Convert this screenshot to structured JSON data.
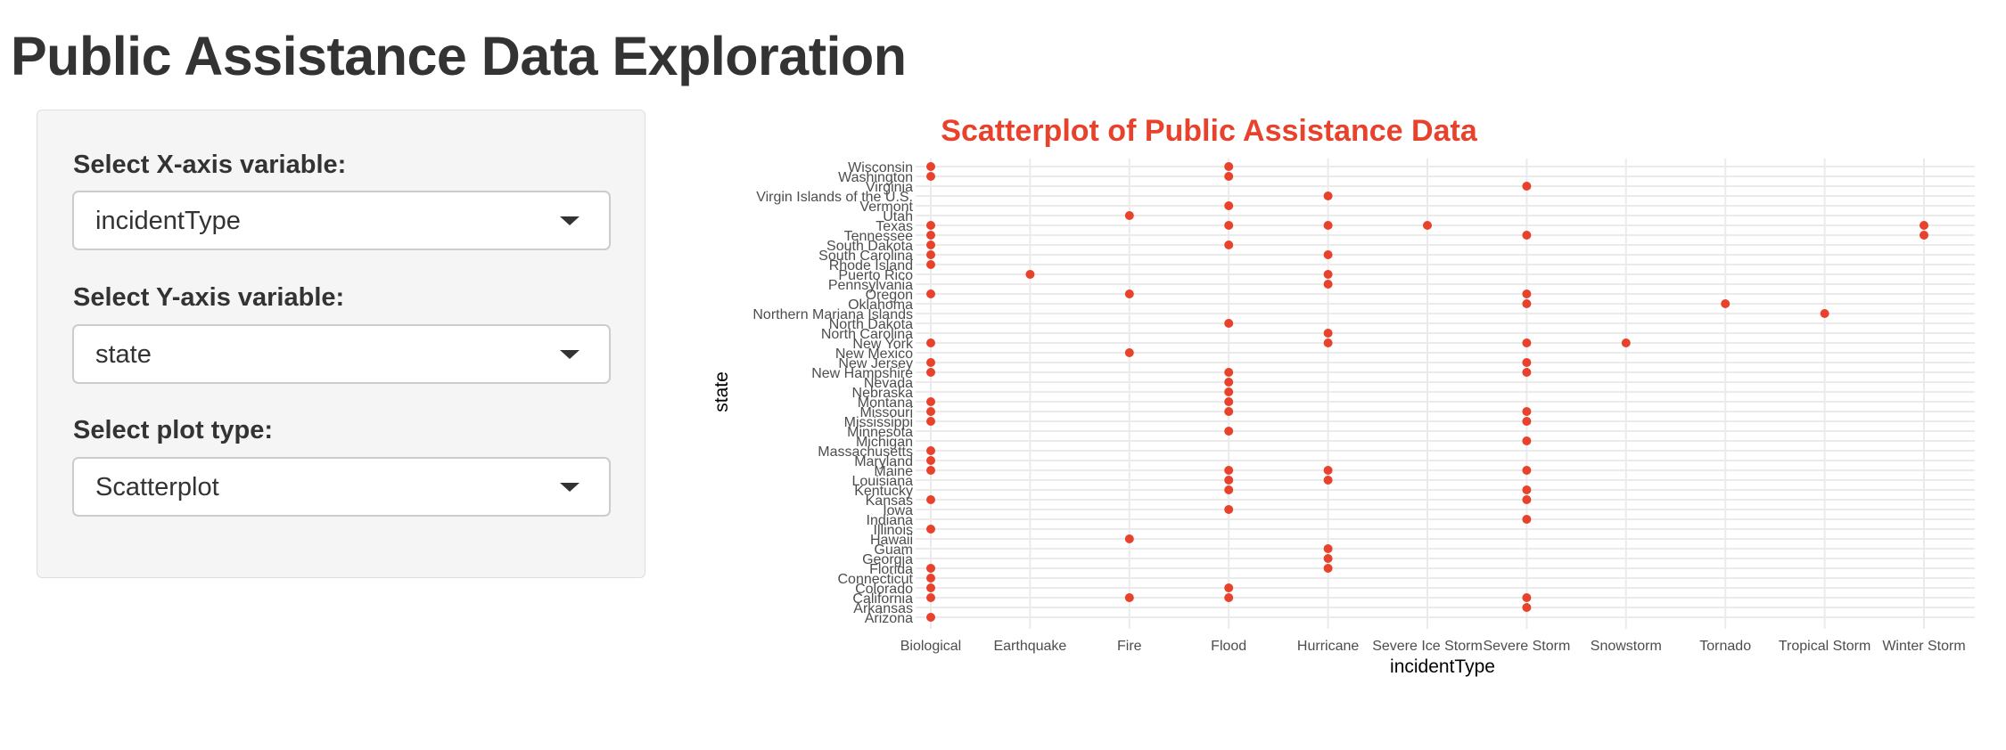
{
  "page": {
    "title": "Public Assistance Data Exploration"
  },
  "controls": [
    {
      "label": "Select X-axis variable:",
      "value": "incidentType"
    },
    {
      "label": "Select Y-axis variable:",
      "value": "state"
    },
    {
      "label": "Select plot type:",
      "value": "Scatterplot"
    }
  ],
  "chart_data": {
    "type": "scatter",
    "title": "Scatterplot of Public Assistance Data",
    "xlabel": "incidentType",
    "ylabel": "state",
    "grid": true,
    "color": "#e8412c",
    "title_color": "#e8412c",
    "x_categories": [
      "Biological",
      "Earthquake",
      "Fire",
      "Flood",
      "Hurricane",
      "Severe Ice Storm",
      "Severe Storm",
      "Snowstorm",
      "Tornado",
      "Tropical Storm",
      "Winter Storm"
    ],
    "y_categories": [
      "Arizona",
      "Arkansas",
      "California",
      "Colorado",
      "Connecticut",
      "Florida",
      "Georgia",
      "Guam",
      "Hawaii",
      "Illinois",
      "Indiana",
      "Iowa",
      "Kansas",
      "Kentucky",
      "Louisiana",
      "Maine",
      "Maryland",
      "Massachusetts",
      "Michigan",
      "Minnesota",
      "Mississippi",
      "Missouri",
      "Montana",
      "Nebraska",
      "Nevada",
      "New Hampshire",
      "New Jersey",
      "New Mexico",
      "New York",
      "North Carolina",
      "North Dakota",
      "Northern Mariana Islands",
      "Oklahoma",
      "Oregon",
      "Pennsylvania",
      "Puerto Rico",
      "Rhode Island",
      "South Carolina",
      "South Dakota",
      "Tennessee",
      "Texas",
      "Utah",
      "Vermont",
      "Virgin Islands of the U.S.",
      "Virginia",
      "Washington",
      "Wisconsin"
    ],
    "points": [
      [
        "Biological",
        "Arizona"
      ],
      [
        "Severe Storm",
        "Arkansas"
      ],
      [
        "Biological",
        "California"
      ],
      [
        "Fire",
        "California"
      ],
      [
        "Flood",
        "California"
      ],
      [
        "Severe Storm",
        "California"
      ],
      [
        "Biological",
        "Colorado"
      ],
      [
        "Flood",
        "Colorado"
      ],
      [
        "Biological",
        "Connecticut"
      ],
      [
        "Biological",
        "Florida"
      ],
      [
        "Hurricane",
        "Florida"
      ],
      [
        "Hurricane",
        "Georgia"
      ],
      [
        "Hurricane",
        "Guam"
      ],
      [
        "Fire",
        "Hawaii"
      ],
      [
        "Biological",
        "Illinois"
      ],
      [
        "Severe Storm",
        "Indiana"
      ],
      [
        "Flood",
        "Iowa"
      ],
      [
        "Biological",
        "Kansas"
      ],
      [
        "Severe Storm",
        "Kansas"
      ],
      [
        "Flood",
        "Kentucky"
      ],
      [
        "Severe Storm",
        "Kentucky"
      ],
      [
        "Flood",
        "Louisiana"
      ],
      [
        "Hurricane",
        "Louisiana"
      ],
      [
        "Biological",
        "Maine"
      ],
      [
        "Flood",
        "Maine"
      ],
      [
        "Hurricane",
        "Maine"
      ],
      [
        "Severe Storm",
        "Maine"
      ],
      [
        "Biological",
        "Maryland"
      ],
      [
        "Biological",
        "Massachusetts"
      ],
      [
        "Severe Storm",
        "Michigan"
      ],
      [
        "Flood",
        "Minnesota"
      ],
      [
        "Biological",
        "Mississippi"
      ],
      [
        "Severe Storm",
        "Mississippi"
      ],
      [
        "Biological",
        "Missouri"
      ],
      [
        "Flood",
        "Missouri"
      ],
      [
        "Severe Storm",
        "Missouri"
      ],
      [
        "Biological",
        "Montana"
      ],
      [
        "Flood",
        "Montana"
      ],
      [
        "Flood",
        "Nebraska"
      ],
      [
        "Flood",
        "Nevada"
      ],
      [
        "Biological",
        "New Hampshire"
      ],
      [
        "Flood",
        "New Hampshire"
      ],
      [
        "Severe Storm",
        "New Hampshire"
      ],
      [
        "Biological",
        "New Jersey"
      ],
      [
        "Severe Storm",
        "New Jersey"
      ],
      [
        "Fire",
        "New Mexico"
      ],
      [
        "Biological",
        "New York"
      ],
      [
        "Hurricane",
        "New York"
      ],
      [
        "Severe Storm",
        "New York"
      ],
      [
        "Snowstorm",
        "New York"
      ],
      [
        "Hurricane",
        "North Carolina"
      ],
      [
        "Flood",
        "North Dakota"
      ],
      [
        "Tropical Storm",
        "Northern Mariana Islands"
      ],
      [
        "Severe Storm",
        "Oklahoma"
      ],
      [
        "Tornado",
        "Oklahoma"
      ],
      [
        "Biological",
        "Oregon"
      ],
      [
        "Fire",
        "Oregon"
      ],
      [
        "Severe Storm",
        "Oregon"
      ],
      [
        "Hurricane",
        "Pennsylvania"
      ],
      [
        "Earthquake",
        "Puerto Rico"
      ],
      [
        "Hurricane",
        "Puerto Rico"
      ],
      [
        "Biological",
        "Rhode Island"
      ],
      [
        "Biological",
        "South Carolina"
      ],
      [
        "Hurricane",
        "South Carolina"
      ],
      [
        "Biological",
        "South Dakota"
      ],
      [
        "Flood",
        "South Dakota"
      ],
      [
        "Biological",
        "Tennessee"
      ],
      [
        "Severe Storm",
        "Tennessee"
      ],
      [
        "Winter Storm",
        "Tennessee"
      ],
      [
        "Biological",
        "Texas"
      ],
      [
        "Flood",
        "Texas"
      ],
      [
        "Hurricane",
        "Texas"
      ],
      [
        "Severe Ice Storm",
        "Texas"
      ],
      [
        "Winter Storm",
        "Texas"
      ],
      [
        "Fire",
        "Utah"
      ],
      [
        "Flood",
        "Vermont"
      ],
      [
        "Hurricane",
        "Virgin Islands of the U.S."
      ],
      [
        "Severe Storm",
        "Virginia"
      ],
      [
        "Biological",
        "Washington"
      ],
      [
        "Flood",
        "Washington"
      ],
      [
        "Biological",
        "Wisconsin"
      ],
      [
        "Flood",
        "Wisconsin"
      ]
    ]
  }
}
